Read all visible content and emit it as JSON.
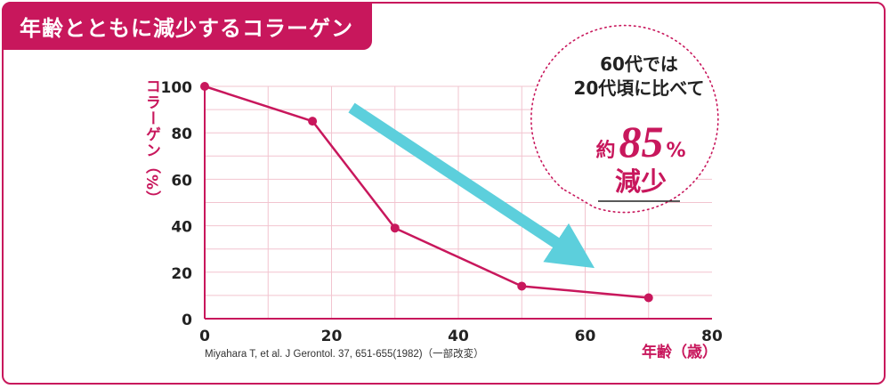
{
  "header": {
    "title": "年齢とともに減少するコラーゲン"
  },
  "callout": {
    "line1": "60代では",
    "line2": "20代頃に比べて",
    "prefix": "約",
    "number": "85",
    "percent": "%",
    "line4": "減少"
  },
  "source": "Miyahara T, et al. J Gerontol. 37, 651-655(1982)（一部改変）",
  "colors": {
    "accent": "#c8175c",
    "grid": "#f2c4cf",
    "arrow": "#5ccfdc",
    "text": "#222222"
  },
  "chart_data": {
    "type": "line",
    "title": "年齢とともに減少するコラーゲン",
    "xlabel": "年齢（歳）",
    "ylabel": "コラーゲン（%）",
    "xlim": [
      0,
      80
    ],
    "ylim": [
      0,
      100
    ],
    "x_ticks": [
      0,
      20,
      40,
      60,
      80
    ],
    "y_ticks": [
      0,
      20,
      40,
      60,
      80,
      100
    ],
    "x_tick_labels": [
      "0",
      "20",
      "40",
      "60",
      "80"
    ],
    "y_tick_labels": [
      "0",
      "20",
      "40",
      "60",
      "80",
      "100"
    ],
    "grid": true,
    "series": [
      {
        "name": "コラーゲン",
        "x": [
          0,
          17,
          30,
          50,
          70
        ],
        "y": [
          100,
          85,
          39,
          14,
          9
        ]
      }
    ]
  }
}
